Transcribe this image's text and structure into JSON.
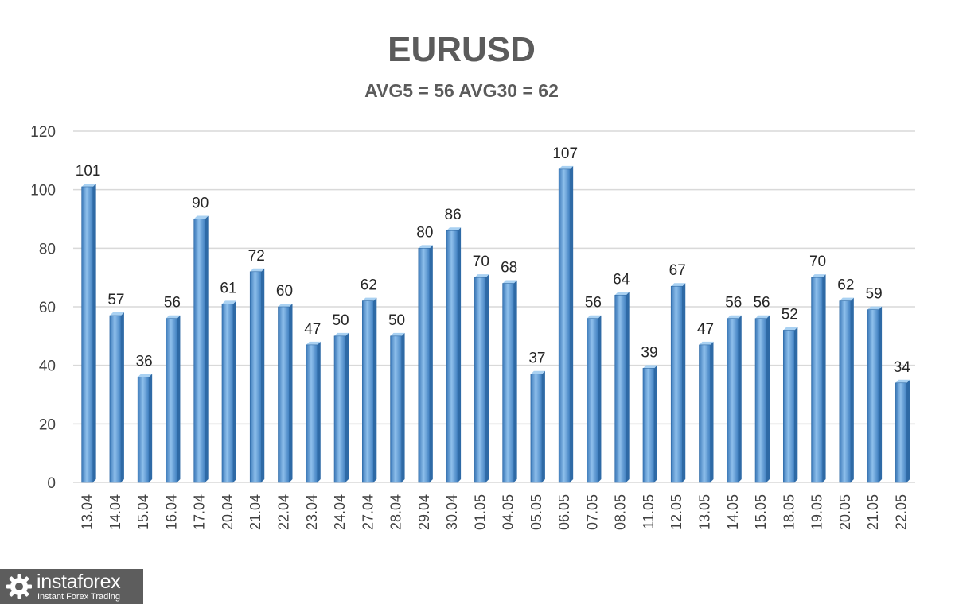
{
  "chart_data": {
    "type": "bar",
    "title": "EURUSD",
    "subtitle": "AVG5 = 56 AVG30 = 62",
    "categories": [
      "13.04",
      "14.04",
      "15.04",
      "16.04",
      "17.04",
      "20.04",
      "21.04",
      "22.04",
      "23.04",
      "24.04",
      "27.04",
      "28.04",
      "29.04",
      "30.04",
      "01.05",
      "04.05",
      "05.05",
      "06.05",
      "07.05",
      "08.05",
      "11.05",
      "12.05",
      "13.05",
      "14.05",
      "15.05",
      "18.05",
      "19.05",
      "20.05",
      "21.05",
      "22.05"
    ],
    "values": [
      101,
      57,
      36,
      56,
      90,
      61,
      72,
      60,
      47,
      50,
      62,
      50,
      80,
      86,
      70,
      68,
      37,
      107,
      56,
      64,
      39,
      67,
      47,
      56,
      56,
      52,
      70,
      62,
      59,
      34
    ],
    "ylim": [
      0,
      120
    ],
    "yticks": [
      0,
      20,
      40,
      60,
      80,
      100,
      120
    ],
    "grid": true,
    "legend": "none",
    "data_labels": true,
    "bar_color": "#5b9bd5"
  },
  "logo": {
    "brand": "instaforex",
    "tagline": "Instant Forex Trading",
    "icon": "gear-icon"
  }
}
